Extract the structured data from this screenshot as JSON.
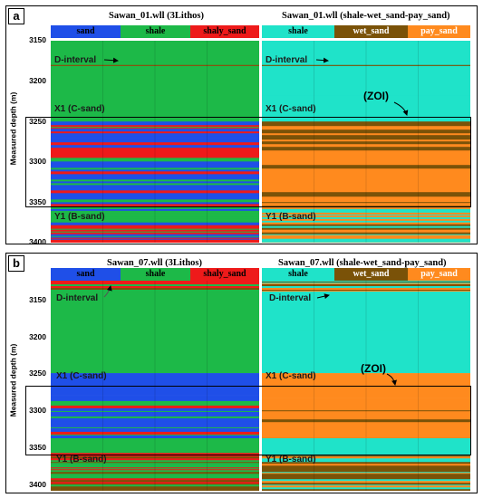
{
  "colors": {
    "sand": "#1f4fe8",
    "shale_left": "#1db948",
    "shaly_sand": "#ee1a1a",
    "shale_right": "#1fe3c9",
    "wet_sand": "#7a5208",
    "pay_sand": "#ff8a1e"
  },
  "panels": [
    {
      "tag": "a",
      "left_title": "Sawan_01.wll (3Lithos)",
      "right_title": "Sawan_01.wll (shale-wet_sand-pay_sand)",
      "ylabel": "Measured depth (m)",
      "ticks": [
        "3150",
        "3200",
        "3250",
        "3300",
        "3350",
        "3400"
      ],
      "left_legend": [
        "sand",
        "shale",
        "shaly_sand"
      ],
      "right_legend": [
        "shale",
        "wet_sand",
        "pay_sand"
      ],
      "annotations": {
        "d_interval": "D-interval",
        "x1": "X1 (C-sand)",
        "y1": "Y1 (B-sand)",
        "zoi": "(ZOI)"
      }
    },
    {
      "tag": "b",
      "left_title": "Sawan_07.wll (3Lithos)",
      "right_title": "Sawan_07.wll (shale-wet_sand-pay_sand)",
      "ylabel": "Measured depth (m)",
      "ticks": [
        "3150",
        "3200",
        "3250",
        "3300",
        "3350",
        "3400"
      ],
      "left_legend": [
        "sand",
        "shale",
        "shaly_sand"
      ],
      "right_legend": [
        "shale",
        "wet_sand",
        "pay_sand"
      ],
      "annotations": {
        "d_interval": "D-interval",
        "x1": "X1 (C-sand)",
        "y1": "Y1 (B-sand)",
        "zoi": "(ZOI)"
      }
    }
  ]
}
